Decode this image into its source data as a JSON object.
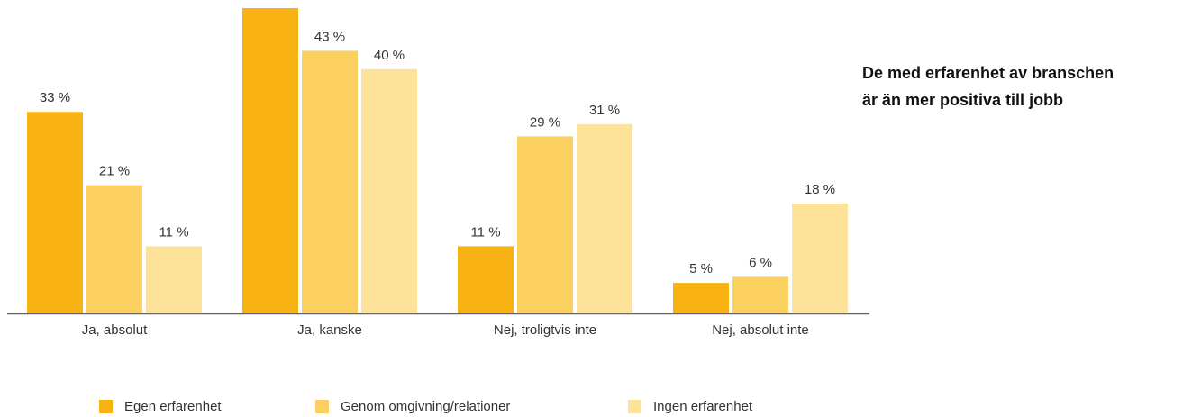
{
  "chart_data": {
    "type": "bar",
    "title": [
      "De med erfarenhet av branschen",
      "är än mer positiva till jobb"
    ],
    "categories": [
      "Ja, absolut",
      "Ja, kanske",
      "Nej, troligtvis inte",
      "Nej, absolut inte"
    ],
    "series": [
      {
        "name": "Egen erfarenhet",
        "color": "#f9b214",
        "values": [
          33,
          50,
          11,
          5
        ],
        "value_labels": [
          "33 %",
          null,
          "11 %",
          "5 %"
        ]
      },
      {
        "name": "Genom omgivning/relationer",
        "color": "#fcd060",
        "values": [
          21,
          43,
          29,
          6
        ],
        "value_labels": [
          "21 %",
          "43 %",
          "29 %",
          "6 %"
        ]
      },
      {
        "name": "Ingen erfarenhet",
        "color": "#fde29a",
        "values": [
          11,
          40,
          31,
          18
        ],
        "value_labels": [
          "11 %",
          "40 %",
          "31 %",
          "18 %"
        ]
      }
    ],
    "ylim": [
      0,
      50
    ],
    "legend": "bottom"
  }
}
